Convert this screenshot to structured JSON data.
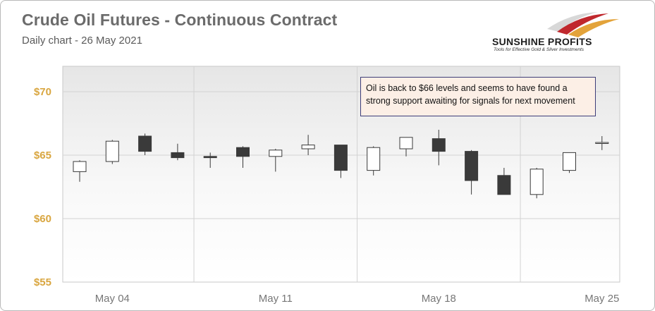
{
  "header": {
    "title": "Crude Oil Futures - Continuous Contract",
    "subtitle": "Daily chart - 26 May 2021"
  },
  "logo": {
    "name": "SUNSHINE PROFITS",
    "tagline": "Tools for Effective Gold & Silver Investments"
  },
  "colors": {
    "up_fill": "#ffffff",
    "down_fill": "#3a3a3a",
    "axis_label": "#d9a640",
    "logo_red": "#c0282d"
  },
  "chart_data": {
    "type": "candlestick",
    "title": "Crude Oil Futures - Continuous Contract",
    "subtitle": "Daily chart - 26 May 2021",
    "ylim": [
      55,
      72
    ],
    "yticks": [
      55,
      60,
      65,
      70
    ],
    "ytick_labels": [
      "$55",
      "$60",
      "$65",
      "$70"
    ],
    "xticks": [
      {
        "index": 1,
        "label": "May 04"
      },
      {
        "index": 6,
        "label": "May 11"
      },
      {
        "index": 11,
        "label": "May 18"
      },
      {
        "index": 16,
        "label": "May 25"
      }
    ],
    "grid": true,
    "candles": [
      {
        "date": "2021-05-03",
        "open": 63.7,
        "high": 64.6,
        "low": 62.9,
        "close": 64.5
      },
      {
        "date": "2021-05-04",
        "open": 64.5,
        "high": 66.2,
        "low": 64.3,
        "close": 66.1
      },
      {
        "date": "2021-05-05",
        "open": 66.5,
        "high": 66.7,
        "low": 65.0,
        "close": 65.3
      },
      {
        "date": "2021-05-06",
        "open": 65.2,
        "high": 65.9,
        "low": 64.6,
        "close": 64.8
      },
      {
        "date": "2021-05-07",
        "open": 64.9,
        "high": 65.2,
        "low": 64.0,
        "close": 64.8
      },
      {
        "date": "2021-05-10",
        "open": 65.6,
        "high": 65.7,
        "low": 64.0,
        "close": 64.9
      },
      {
        "date": "2021-05-11",
        "open": 64.9,
        "high": 65.5,
        "low": 63.7,
        "close": 65.4
      },
      {
        "date": "2021-05-12",
        "open": 65.5,
        "high": 66.6,
        "low": 65.0,
        "close": 65.8
      },
      {
        "date": "2021-05-13",
        "open": 65.8,
        "high": 65.8,
        "low": 63.2,
        "close": 63.8
      },
      {
        "date": "2021-05-14",
        "open": 63.8,
        "high": 65.7,
        "low": 63.4,
        "close": 65.6
      },
      {
        "date": "2021-05-17",
        "open": 65.5,
        "high": 66.4,
        "low": 64.9,
        "close": 66.4
      },
      {
        "date": "2021-05-18",
        "open": 66.3,
        "high": 67.0,
        "low": 64.2,
        "close": 65.3
      },
      {
        "date": "2021-05-19",
        "open": 65.3,
        "high": 65.4,
        "low": 61.9,
        "close": 63.0
      },
      {
        "date": "2021-05-20",
        "open": 63.4,
        "high": 64.0,
        "low": 61.9,
        "close": 61.9
      },
      {
        "date": "2021-05-21",
        "open": 61.9,
        "high": 64.0,
        "low": 61.6,
        "close": 63.9
      },
      {
        "date": "2021-05-24",
        "open": 63.8,
        "high": 65.2,
        "low": 63.6,
        "close": 65.2
      },
      {
        "date": "2021-05-25",
        "open": 66.0,
        "high": 66.5,
        "low": 65.4,
        "close": 66.0
      }
    ],
    "annotations": [
      "Oil is back to $66 levels and seems to have found a strong support awaiting for signals for next movement"
    ]
  }
}
